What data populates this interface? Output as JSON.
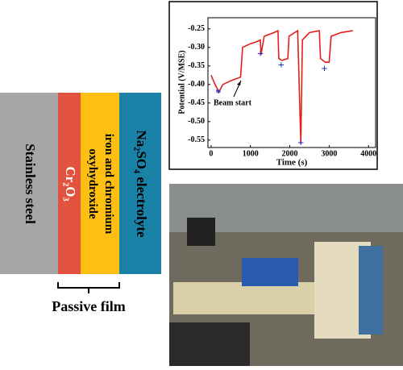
{
  "diagram": {
    "layers": [
      "Stainless steel",
      "Cr₂O₃",
      "iron and chromium oxyhydroxide",
      "Na₂SO₄ electrolyte"
    ],
    "bracket_label": "Passive film"
  },
  "chart_data": {
    "type": "line",
    "xlabel": "Time (s)",
    "ylabel": "Potential (V/MSE)",
    "annotation": "Beam start",
    "x": [
      0,
      100,
      200,
      300,
      500,
      750,
      800,
      1000,
      1150,
      1250,
      1270,
      1300,
      1350,
      1600,
      1700,
      1720,
      1800,
      1950,
      1980,
      2200,
      2280,
      2320,
      2500,
      2750,
      2780,
      2900,
      3000,
      3050,
      3300,
      3600
    ],
    "values": [
      -0.375,
      -0.4,
      -0.42,
      -0.4,
      -0.39,
      -0.38,
      -0.3,
      -0.29,
      -0.285,
      -0.28,
      -0.32,
      -0.3,
      -0.27,
      -0.26,
      -0.255,
      -0.33,
      -0.335,
      -0.33,
      -0.27,
      -0.255,
      -0.56,
      -0.28,
      -0.26,
      -0.255,
      -0.33,
      -0.34,
      -0.34,
      -0.27,
      -0.26,
      -0.255
    ],
    "color": "#e0201b",
    "markers": {
      "x": [
        180,
        1250,
        1780,
        2280,
        2880
      ],
      "values": [
        -0.425,
        -0.32,
        -0.35,
        -0.56,
        -0.36
      ],
      "symbols": [
        "*",
        "+",
        "+",
        "+",
        "+"
      ],
      "color": "#2233bb"
    },
    "xlim": [
      -80,
      4180
    ],
    "ylim": [
      -0.22,
      -0.57
    ],
    "xticks": [
      0,
      1000,
      2000,
      3000,
      4000
    ],
    "yticks": [
      -0.25,
      {
        "value": -0.3,
        "label": "-0.30"
      },
      -0.35,
      {
        "value": -0.4,
        "label": "-0.40"
      },
      -0.45,
      {
        "value": -0.5,
        "label": "-0.50"
      },
      -0.55
    ]
  }
}
